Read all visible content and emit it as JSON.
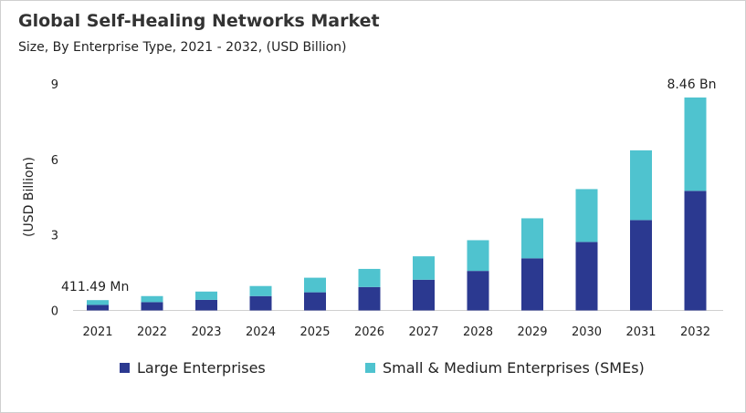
{
  "chart_data": {
    "type": "bar",
    "stacked": true,
    "title": "Global Self-Healing Networks Market",
    "subtitle": "Size, By Enterprise Type, 2021 - 2032, (USD Billion)",
    "xlabel": "",
    "ylabel": "(USD Billion)",
    "ylim": [
      0,
      9
    ],
    "yticks": [
      "0",
      "3",
      "6",
      "9"
    ],
    "grid": false,
    "legend_position": "bottom",
    "categories": [
      "2021",
      "2022",
      "2023",
      "2024",
      "2025",
      "2026",
      "2027",
      "2028",
      "2029",
      "2030",
      "2031",
      "2032"
    ],
    "series": [
      {
        "name": "Large Enterprises",
        "color": "#2b3990",
        "values": [
          0.22,
          0.33,
          0.42,
          0.57,
          0.72,
          0.93,
          1.22,
          1.57,
          2.07,
          2.72,
          3.59,
          4.75
        ]
      },
      {
        "name": "Small & Medium Enterprises (SMEs)",
        "color": "#4fc3cf",
        "values": [
          0.19,
          0.24,
          0.33,
          0.4,
          0.58,
          0.72,
          0.93,
          1.22,
          1.59,
          2.1,
          2.77,
          3.71
        ]
      }
    ],
    "annotations": [
      {
        "category": "2021",
        "text": "411.49 Mn"
      },
      {
        "category": "2032",
        "text": "8.46 Bn"
      }
    ]
  }
}
